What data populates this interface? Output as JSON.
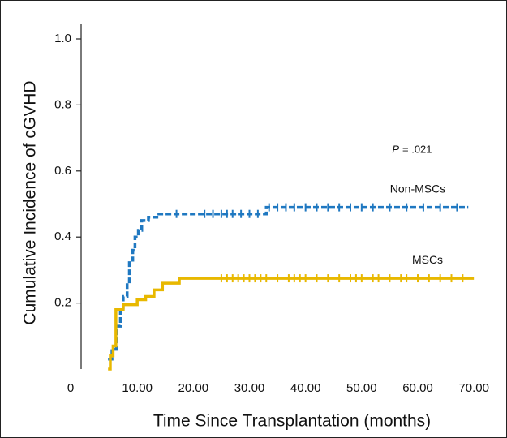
{
  "chart_data": {
    "type": "step",
    "x_label": "Time Since Transplantation (months)",
    "y_label": "Cumulative Incidence of cGVHD",
    "annotation_p": "P",
    "annotation_value": "= .021",
    "xlim": [
      0,
      72
    ],
    "xticks": [
      0,
      {
        "value": 10,
        "label": "10.00"
      },
      {
        "value": 20,
        "label": "20.00"
      },
      {
        "value": 30,
        "label": "30.00"
      },
      {
        "value": 40,
        "label": "40.00"
      },
      {
        "value": 50,
        "label": "50.00"
      },
      {
        "value": 60,
        "label": "60.00"
      },
      {
        "value": 70,
        "label": "70.00"
      }
    ],
    "ylim": [
      0,
      1
    ],
    "yticks": [
      0.2,
      0.4,
      0.6,
      0.8,
      {
        "value": 1,
        "label": "1.0"
      }
    ],
    "series": [
      {
        "name": "Non-MSCs",
        "color": "#1f78c1",
        "dashed": true,
        "x": [
          4.8,
          5.5,
          6.3,
          7.0,
          7.5,
          8.2,
          8.6,
          9.2,
          9.6,
          10.2,
          10.8,
          12.0,
          13.5,
          33.0,
          69.0
        ],
        "values": [
          0.03,
          0.06,
          0.13,
          0.18,
          0.22,
          0.26,
          0.33,
          0.36,
          0.4,
          0.42,
          0.45,
          0.46,
          0.47,
          0.49,
          0.49
        ],
        "censored": [
          17,
          22,
          23.5,
          25,
          26,
          27,
          28.5,
          30,
          31.5,
          33.5,
          35,
          36.5,
          38,
          40,
          42,
          44,
          46,
          48,
          50,
          52,
          55,
          58,
          61,
          64,
          67
        ]
      },
      {
        "name": "MSCs",
        "color": "#e8b800",
        "dashed": false,
        "x": [
          4.8,
          5.2,
          5.7,
          6.2,
          7.5,
          10.0,
          11.5,
          13.0,
          14.5,
          17.5,
          70.0
        ],
        "values": [
          0.0,
          0.04,
          0.07,
          0.18,
          0.195,
          0.21,
          0.22,
          0.24,
          0.26,
          0.275,
          0.275
        ],
        "censored": [
          25,
          26,
          27,
          28,
          29,
          30,
          31,
          32,
          33,
          35,
          37,
          38,
          39,
          40,
          42,
          44,
          46,
          48,
          49,
          50,
          52,
          53,
          55,
          57,
          58,
          60,
          62,
          64,
          66,
          68
        ]
      }
    ]
  }
}
